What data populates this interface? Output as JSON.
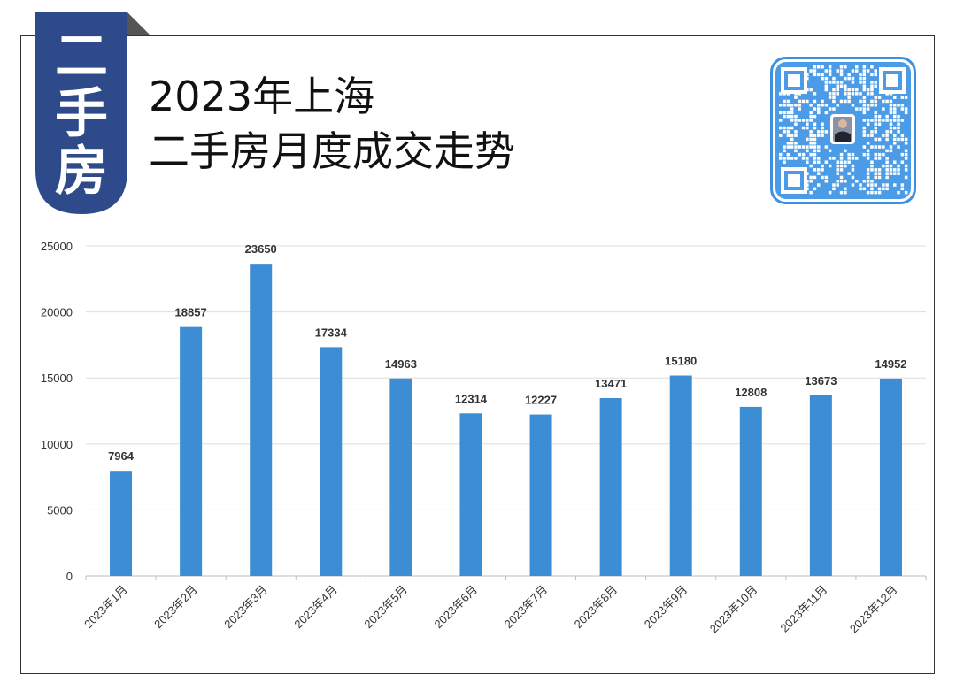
{
  "badge": {
    "chars": [
      "二",
      "手",
      "房"
    ],
    "color": "#2E4A8A"
  },
  "title": {
    "line1": "2023年上海",
    "line2": "二手房月度成交走势"
  },
  "qr": {
    "border_color": "#3D8FE0"
  },
  "chart_data": {
    "type": "bar",
    "categories": [
      "2023年1月",
      "2023年2月",
      "2023年3月",
      "2023年4月",
      "2023年5月",
      "2023年6月",
      "2023年7月",
      "2023年8月",
      "2023年9月",
      "2023年10月",
      "2023年11月",
      "2023年12月"
    ],
    "values": [
      7964,
      18857,
      23650,
      17334,
      14963,
      12314,
      12227,
      13471,
      15180,
      12808,
      13673,
      14952
    ],
    "ylim": [
      0,
      25000
    ],
    "yticks": [
      0,
      5000,
      10000,
      15000,
      20000,
      25000
    ],
    "grid": true,
    "bar_color": "#3D8DD4",
    "title": "",
    "xlabel": "",
    "ylabel": ""
  }
}
